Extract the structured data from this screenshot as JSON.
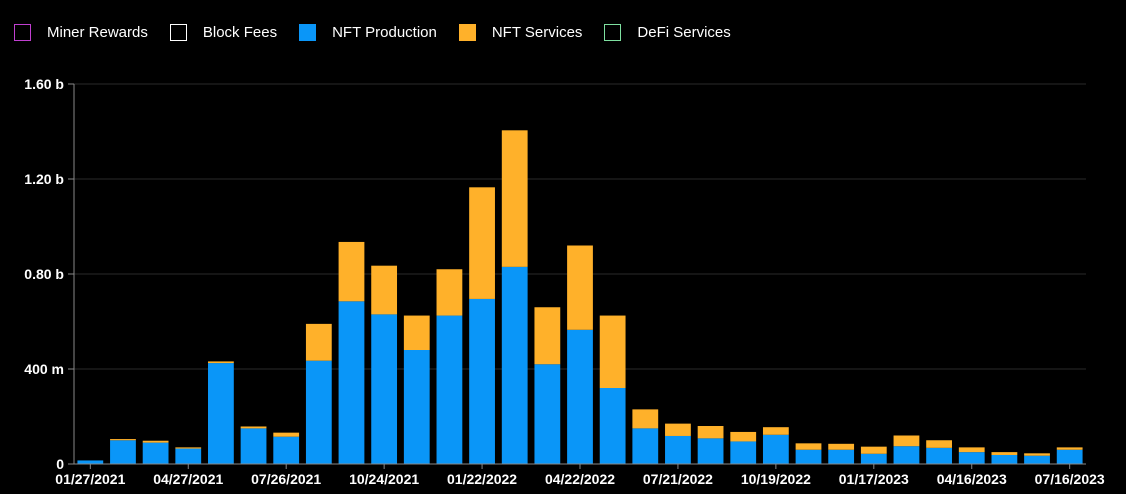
{
  "legend": [
    {
      "name": "Miner Rewards",
      "color": "#c03fd0",
      "filled": false
    },
    {
      "name": "Block Fees",
      "color": "#ffffff",
      "filled": false
    },
    {
      "name": "NFT Production",
      "color": "#0a96f8",
      "filled": true
    },
    {
      "name": "NFT Services",
      "color": "#ffb12a",
      "filled": true
    },
    {
      "name": "DeFi Services",
      "color": "#7ee0a0",
      "filled": false
    }
  ],
  "chart_data": {
    "type": "bar",
    "stacked": true,
    "title": "",
    "xlabel": "",
    "ylabel": "",
    "ylim": [
      0,
      1600000000
    ],
    "yticks": [
      {
        "value": 0,
        "label": "0"
      },
      {
        "value": 400000000,
        "label": "400 m"
      },
      {
        "value": 800000000,
        "label": "0.80 b"
      },
      {
        "value": 1200000000,
        "label": "1.20 b"
      },
      {
        "value": 1600000000,
        "label": "1.60 b"
      }
    ],
    "xtick_labels": [
      {
        "index": 0,
        "label": "01/27/2021"
      },
      {
        "index": 3,
        "label": "04/27/2021"
      },
      {
        "index": 6,
        "label": "07/26/2021"
      },
      {
        "index": 9,
        "label": "10/24/2021"
      },
      {
        "index": 12,
        "label": "01/22/2022"
      },
      {
        "index": 15,
        "label": "04/22/2022"
      },
      {
        "index": 18,
        "label": "07/21/2022"
      },
      {
        "index": 21,
        "label": "10/19/2022"
      },
      {
        "index": 24,
        "label": "01/17/2023"
      },
      {
        "index": 27,
        "label": "04/16/2023"
      },
      {
        "index": 30,
        "label": "07/16/2023"
      }
    ],
    "grid": true,
    "legend_position": "top-left",
    "series": [
      {
        "name": "NFT Production",
        "color": "#0a96f8",
        "values": [
          15000000,
          100000000,
          90000000,
          65000000,
          425000000,
          150000000,
          115000000,
          435000000,
          685000000,
          630000000,
          480000000,
          625000000,
          695000000,
          830000000,
          420000000,
          565000000,
          320000000,
          150000000,
          118000000,
          108000000,
          95000000,
          123000000,
          60000000,
          60000000,
          43000000,
          75000000,
          68000000,
          50000000,
          38000000,
          35000000,
          60000000
        ]
      },
      {
        "name": "NFT Services",
        "color": "#ffb12a",
        "values": [
          0,
          5000000,
          8000000,
          5000000,
          7000000,
          8000000,
          17000000,
          155000000,
          250000000,
          205000000,
          145000000,
          195000000,
          470000000,
          575000000,
          240000000,
          355000000,
          305000000,
          80000000,
          52000000,
          52000000,
          40000000,
          32000000,
          27000000,
          25000000,
          30000000,
          45000000,
          32000000,
          20000000,
          12000000,
          10000000,
          10000000
        ]
      }
    ]
  }
}
